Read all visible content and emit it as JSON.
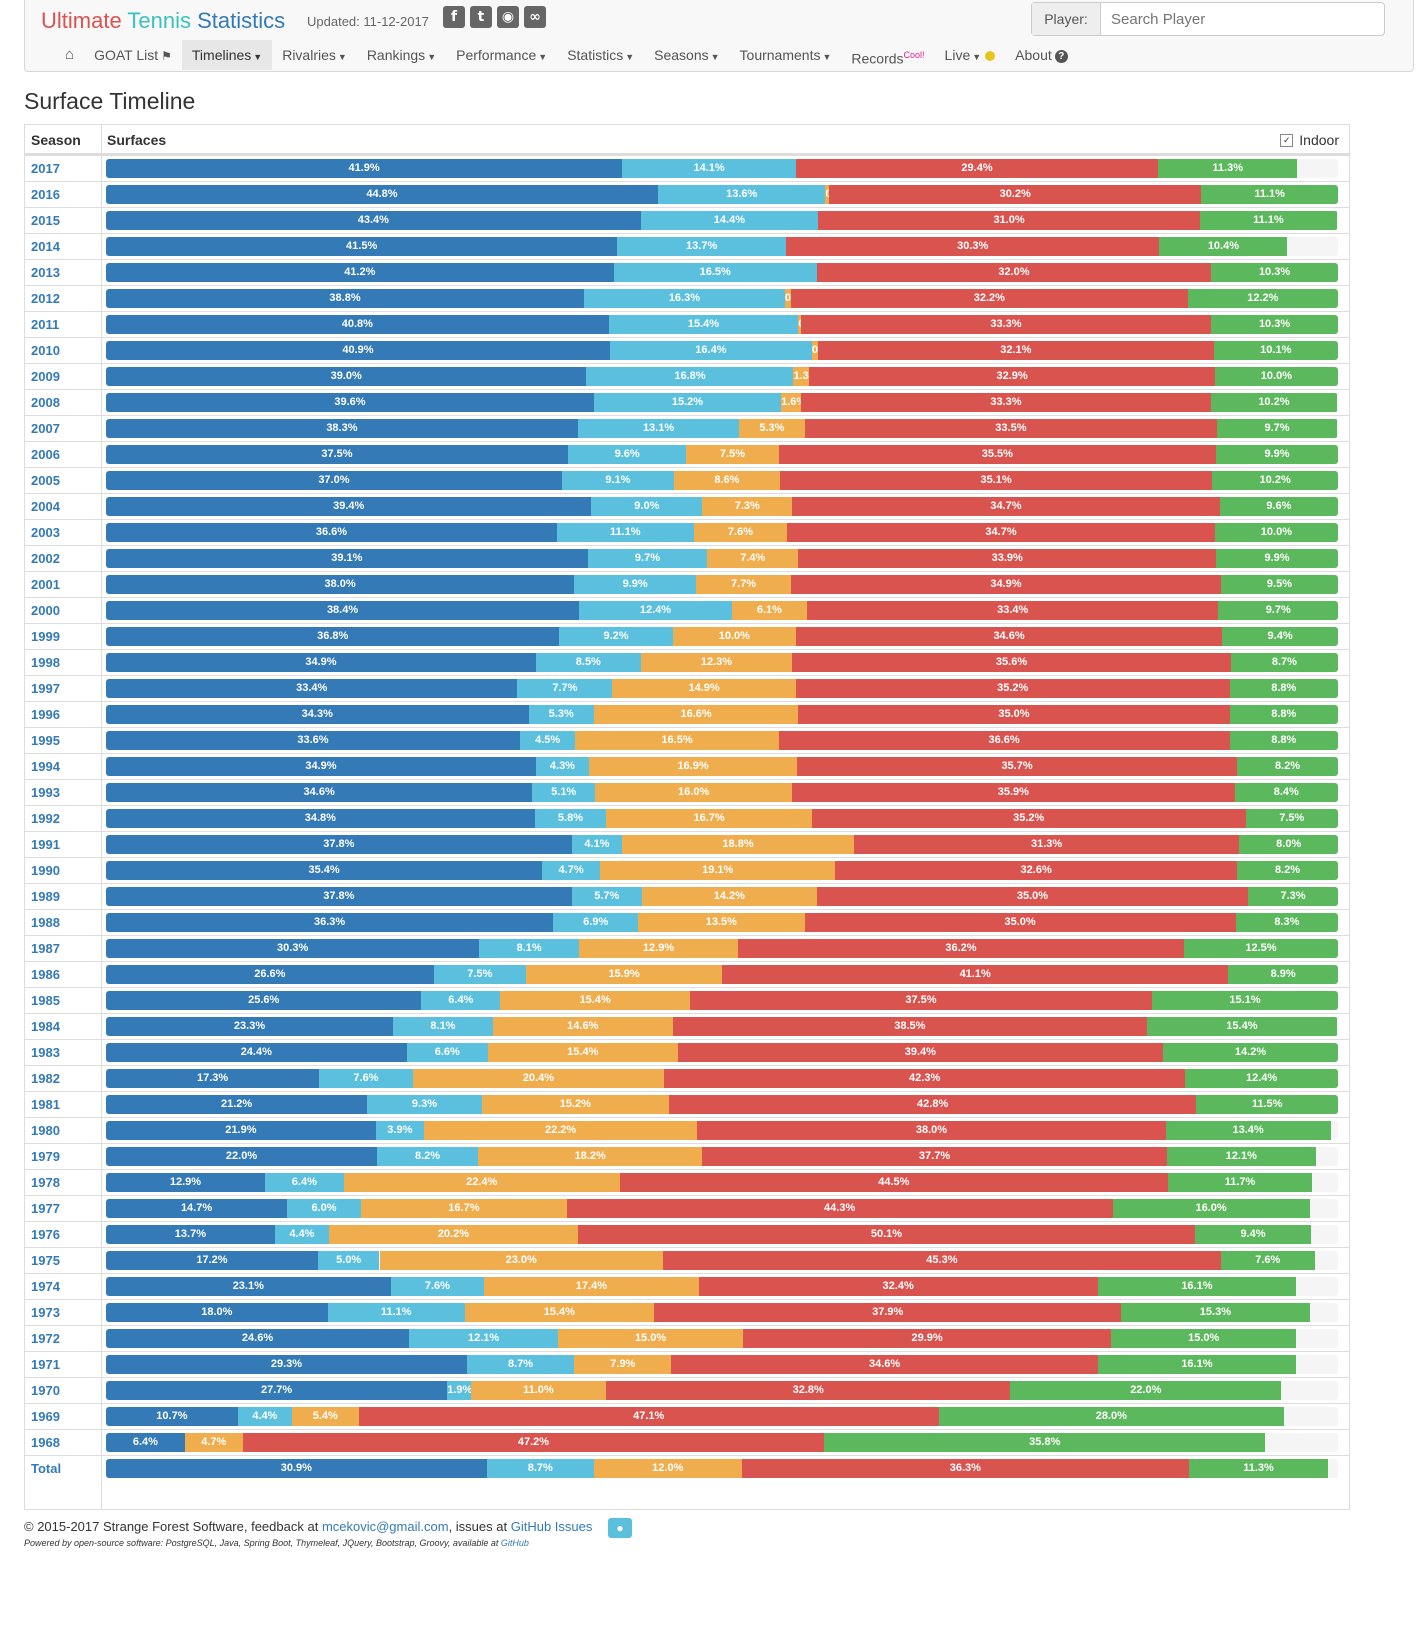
{
  "brand": {
    "word1": "Ultimate",
    "word2": "Tennis",
    "word3": "Statistics"
  },
  "updated": "Updated: 11-12-2017",
  "social_icons": [
    "facebook-icon",
    "twitter-icon",
    "github-icon",
    "rss-icon"
  ],
  "search": {
    "label": "Player:",
    "placeholder": "Search Player"
  },
  "menu": [
    {
      "label": "GOAT List",
      "name": "goat-list"
    },
    {
      "label": "Timelines",
      "name": "timelines",
      "caret": true,
      "active": true
    },
    {
      "label": "Rivalries",
      "name": "rivalries",
      "caret": true
    },
    {
      "label": "Rankings",
      "name": "rankings",
      "caret": true
    },
    {
      "label": "Performance",
      "name": "performance",
      "caret": true
    },
    {
      "label": "Statistics",
      "name": "statistics",
      "caret": true
    },
    {
      "label": "Seasons",
      "name": "seasons",
      "caret": true
    },
    {
      "label": "Tournaments",
      "name": "tournaments",
      "caret": true
    },
    {
      "label": "Records",
      "name": "records",
      "badge": "Cool!"
    },
    {
      "label": "Live",
      "name": "live",
      "caret": true
    },
    {
      "label": "About",
      "name": "about"
    }
  ],
  "page_title": "Surface Timeline",
  "table": {
    "col_season": "Season",
    "col_surfaces": "Surfaces",
    "indoor_label": "Indoor",
    "indoor_checked": true
  },
  "colors": {
    "hard": "#337ab7",
    "indoor_hard": "#5bc0de",
    "carpet": "#f0ad4e",
    "clay": "#d9534f",
    "grass": "#5cb85c"
  },
  "chart_data": {
    "type": "bar",
    "stacked": true,
    "orientation": "horizontal",
    "series_order": [
      "hard",
      "indoor_hard",
      "carpet",
      "clay",
      "grass"
    ],
    "rows": [
      {
        "season": "2017",
        "values": [
          41.9,
          14.1,
          0,
          29.4,
          11.3
        ]
      },
      {
        "season": "2016",
        "values": [
          44.8,
          13.6,
          0.3,
          30.2,
          11.1
        ]
      },
      {
        "season": "2015",
        "values": [
          43.4,
          14.4,
          0,
          31.0,
          11.1
        ]
      },
      {
        "season": "2014",
        "values": [
          41.5,
          13.7,
          0,
          30.3,
          10.4
        ]
      },
      {
        "season": "2013",
        "values": [
          41.2,
          16.5,
          0,
          32.0,
          10.3
        ]
      },
      {
        "season": "2012",
        "values": [
          38.8,
          16.3,
          0.5,
          32.2,
          12.2
        ]
      },
      {
        "season": "2011",
        "values": [
          40.8,
          15.4,
          0.2,
          33.3,
          10.3
        ]
      },
      {
        "season": "2010",
        "values": [
          40.9,
          16.4,
          0.5,
          32.1,
          10.1
        ]
      },
      {
        "season": "2009",
        "values": [
          39.0,
          16.8,
          1.3,
          32.9,
          10.0
        ]
      },
      {
        "season": "2008",
        "values": [
          39.6,
          15.2,
          1.6,
          33.3,
          10.2
        ]
      },
      {
        "season": "2007",
        "values": [
          38.3,
          13.1,
          5.3,
          33.5,
          9.7
        ]
      },
      {
        "season": "2006",
        "values": [
          37.5,
          9.6,
          7.5,
          35.5,
          9.9
        ]
      },
      {
        "season": "2005",
        "values": [
          37.0,
          9.1,
          8.6,
          35.1,
          10.2
        ]
      },
      {
        "season": "2004",
        "values": [
          39.4,
          9.0,
          7.3,
          34.7,
          9.6
        ]
      },
      {
        "season": "2003",
        "values": [
          36.6,
          11.1,
          7.6,
          34.7,
          10.0
        ]
      },
      {
        "season": "2002",
        "values": [
          39.1,
          9.7,
          7.4,
          33.9,
          9.9
        ]
      },
      {
        "season": "2001",
        "values": [
          38.0,
          9.9,
          7.7,
          34.9,
          9.5
        ]
      },
      {
        "season": "2000",
        "values": [
          38.4,
          12.4,
          6.1,
          33.4,
          9.7
        ]
      },
      {
        "season": "1999",
        "values": [
          36.8,
          9.2,
          10.0,
          34.6,
          9.4
        ]
      },
      {
        "season": "1998",
        "values": [
          34.9,
          8.5,
          12.3,
          35.6,
          8.7
        ]
      },
      {
        "season": "1997",
        "values": [
          33.4,
          7.7,
          14.9,
          35.2,
          8.8
        ]
      },
      {
        "season": "1996",
        "values": [
          34.3,
          5.3,
          16.6,
          35.0,
          8.8
        ]
      },
      {
        "season": "1995",
        "values": [
          33.6,
          4.5,
          16.5,
          36.6,
          8.8
        ]
      },
      {
        "season": "1994",
        "values": [
          34.9,
          4.3,
          16.9,
          35.7,
          8.2
        ]
      },
      {
        "season": "1993",
        "values": [
          34.6,
          5.1,
          16.0,
          35.9,
          8.4
        ]
      },
      {
        "season": "1992",
        "values": [
          34.8,
          5.8,
          16.7,
          35.2,
          7.5
        ]
      },
      {
        "season": "1991",
        "values": [
          37.8,
          4.1,
          18.8,
          31.3,
          8.0
        ]
      },
      {
        "season": "1990",
        "values": [
          35.4,
          4.7,
          19.1,
          32.6,
          8.2
        ]
      },
      {
        "season": "1989",
        "values": [
          37.8,
          5.7,
          14.2,
          35.0,
          7.3
        ]
      },
      {
        "season": "1988",
        "values": [
          36.3,
          6.9,
          13.5,
          35.0,
          8.3
        ]
      },
      {
        "season": "1987",
        "values": [
          30.3,
          8.1,
          12.9,
          36.2,
          12.5
        ]
      },
      {
        "season": "1986",
        "values": [
          26.6,
          7.5,
          15.9,
          41.1,
          8.9
        ]
      },
      {
        "season": "1985",
        "values": [
          25.6,
          6.4,
          15.4,
          37.5,
          15.1
        ]
      },
      {
        "season": "1984",
        "values": [
          23.3,
          8.1,
          14.6,
          38.5,
          15.4
        ]
      },
      {
        "season": "1983",
        "values": [
          24.4,
          6.6,
          15.4,
          39.4,
          14.2
        ]
      },
      {
        "season": "1982",
        "values": [
          17.3,
          7.6,
          20.4,
          42.3,
          12.4
        ]
      },
      {
        "season": "1981",
        "values": [
          21.2,
          9.3,
          15.2,
          42.8,
          11.5
        ]
      },
      {
        "season": "1980",
        "values": [
          21.9,
          3.9,
          22.2,
          38.0,
          13.4
        ]
      },
      {
        "season": "1979",
        "values": [
          22.0,
          8.2,
          18.2,
          37.7,
          12.1
        ]
      },
      {
        "season": "1978",
        "values": [
          12.9,
          6.4,
          22.4,
          44.5,
          11.7
        ]
      },
      {
        "season": "1977",
        "values": [
          14.7,
          6.0,
          16.7,
          44.3,
          16.0
        ]
      },
      {
        "season": "1976",
        "values": [
          13.7,
          4.4,
          20.2,
          50.1,
          9.4
        ]
      },
      {
        "season": "1975",
        "values": [
          17.2,
          5.0,
          23.0,
          45.3,
          7.6
        ]
      },
      {
        "season": "1974",
        "values": [
          23.1,
          7.6,
          17.4,
          32.4,
          16.1
        ]
      },
      {
        "season": "1973",
        "values": [
          18.0,
          11.1,
          15.4,
          37.9,
          15.3
        ]
      },
      {
        "season": "1972",
        "values": [
          24.6,
          12.1,
          15.0,
          29.9,
          15.0
        ]
      },
      {
        "season": "1971",
        "values": [
          29.3,
          8.7,
          7.9,
          34.6,
          16.1
        ]
      },
      {
        "season": "1970",
        "values": [
          27.7,
          1.9,
          11.0,
          32.8,
          22.0
        ]
      },
      {
        "season": "1969",
        "values": [
          10.7,
          4.4,
          5.4,
          47.1,
          28.0
        ]
      },
      {
        "season": "1968",
        "values": [
          6.4,
          0,
          4.7,
          47.2,
          35.8
        ]
      },
      {
        "season": "Total",
        "values": [
          30.9,
          8.7,
          12.0,
          36.3,
          11.3
        ]
      }
    ]
  },
  "footer": {
    "copyright": "© 2015-2017 Strange Forest Software, feedback at",
    "email": "mcekovic@gmail.com",
    "issues_text": ", issues at",
    "issues_link": "GitHub Issues",
    "powered": "Powered by open-source software: PostgreSQL, Java, Spring Boot, Thymeleaf, JQuery, Bootstrap, Groovy, available at",
    "powered_link": "GitHub"
  }
}
